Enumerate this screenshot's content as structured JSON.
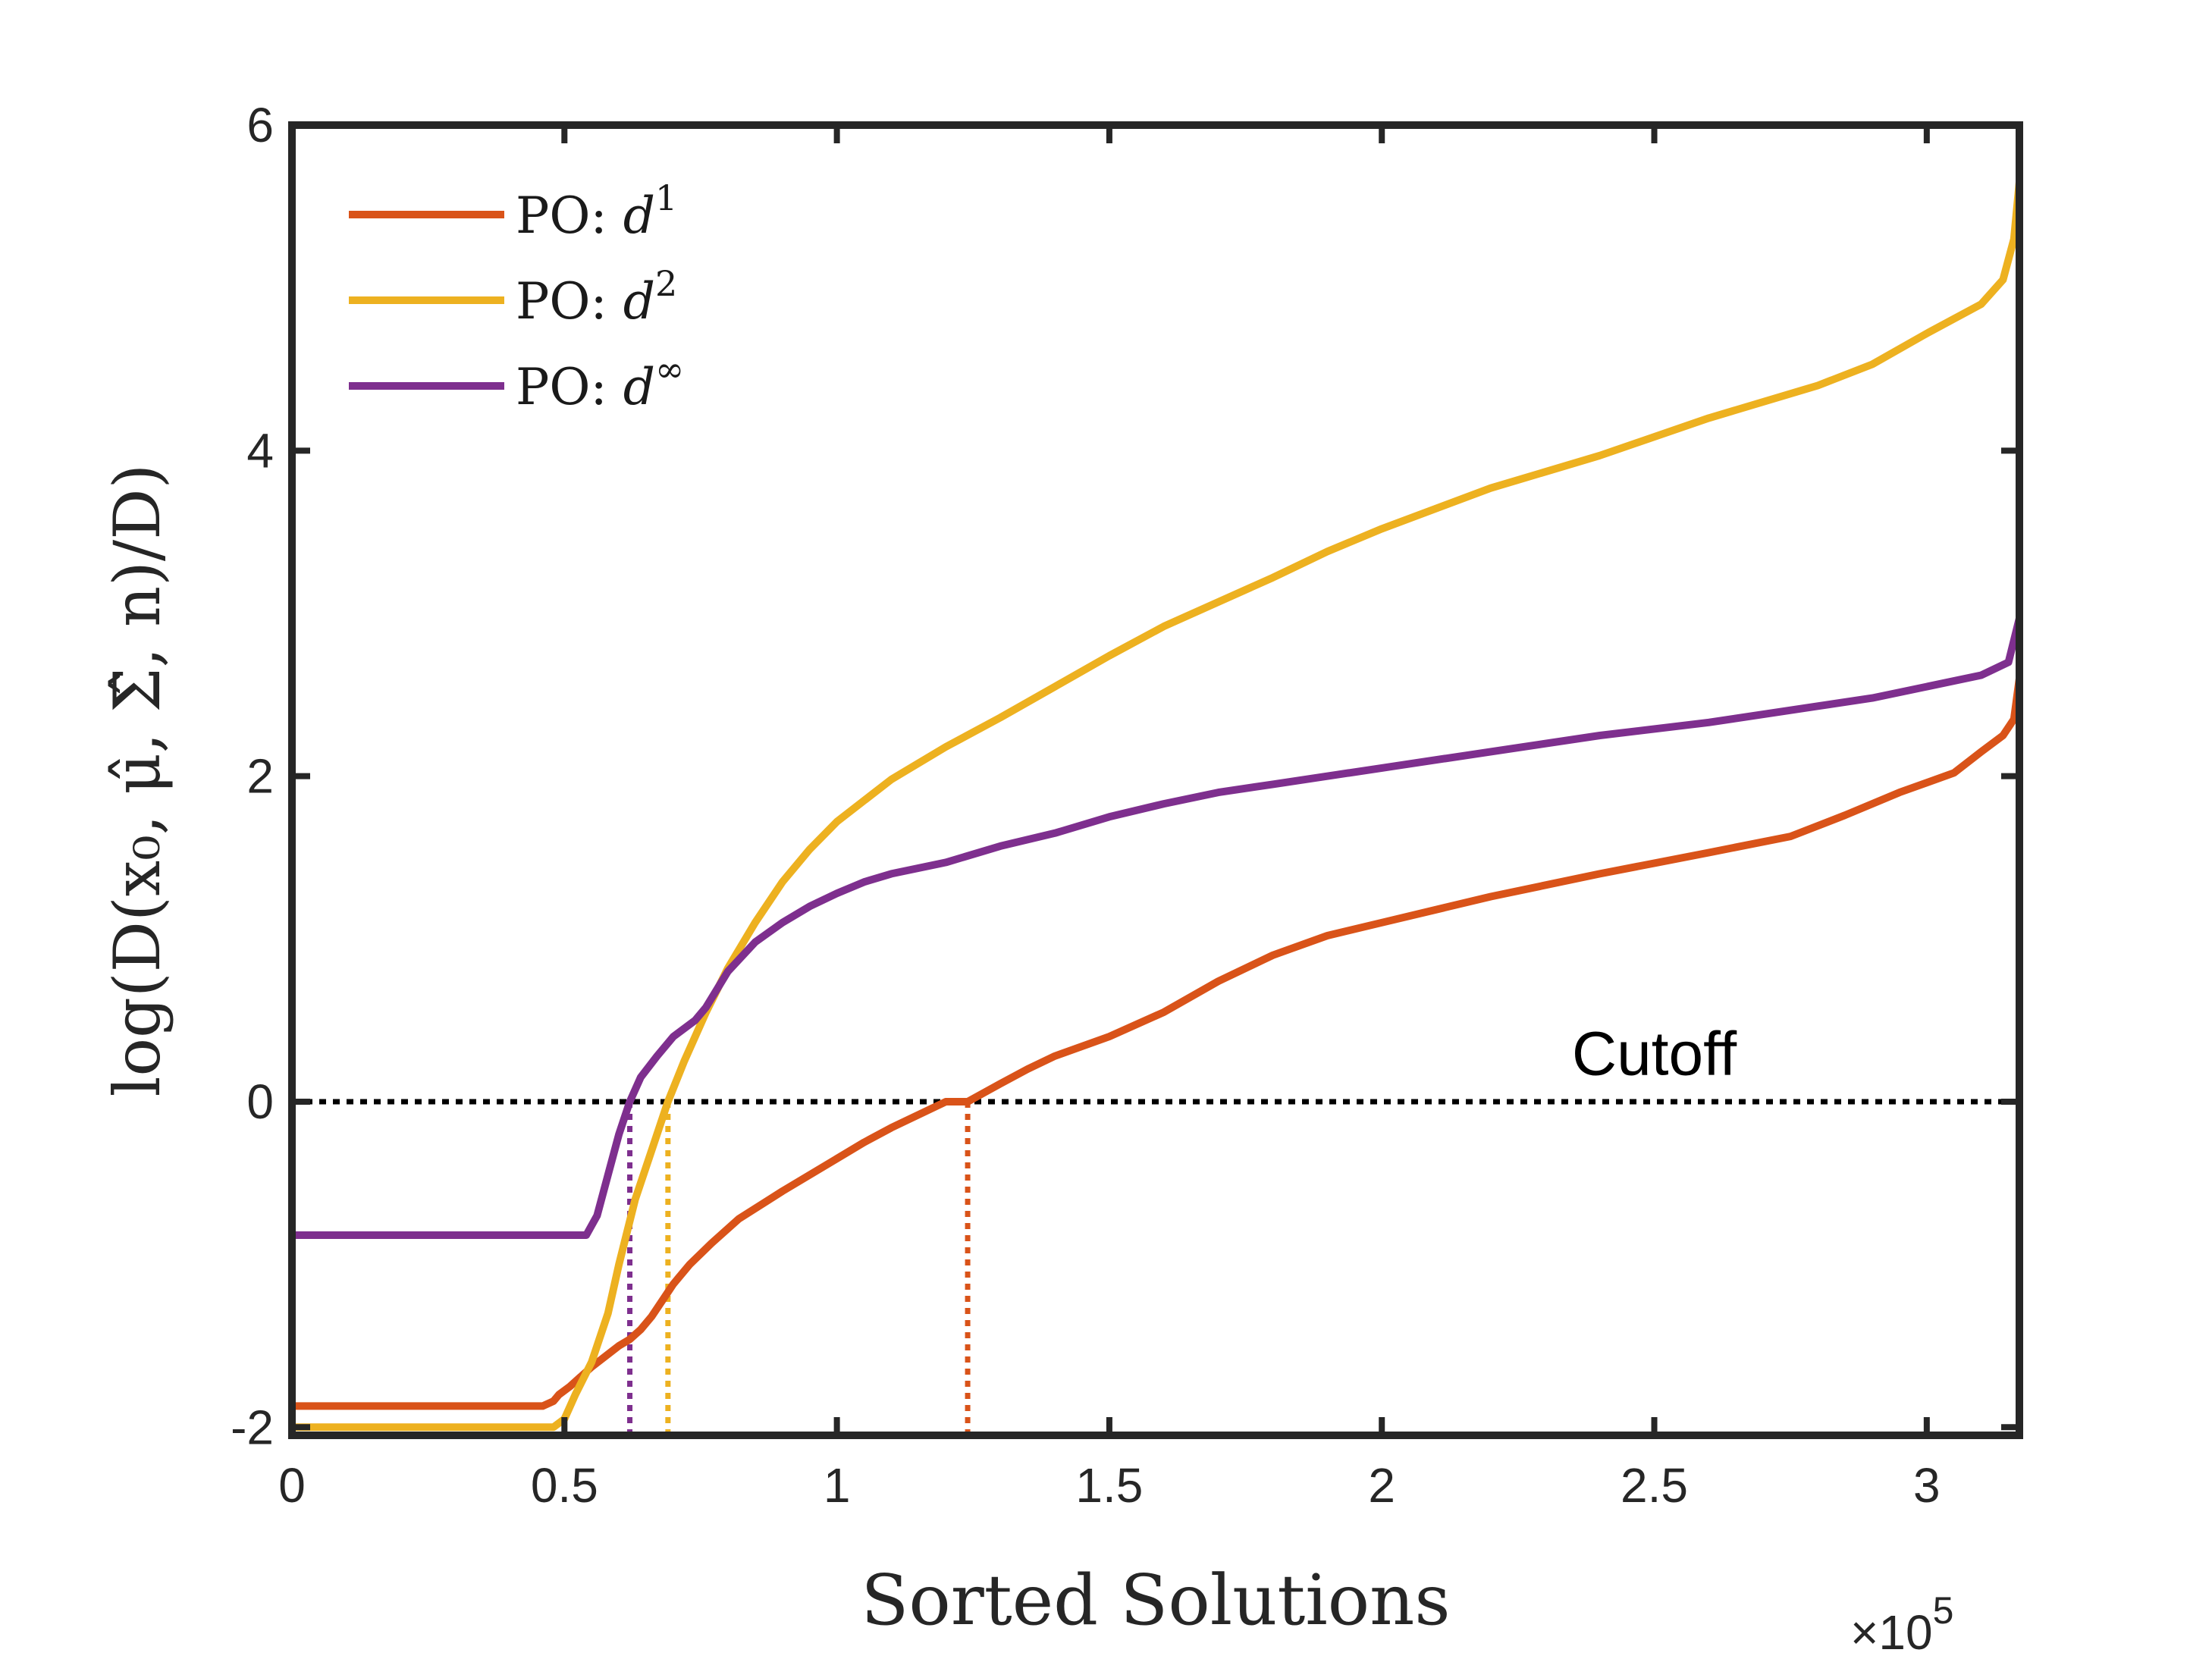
{
  "chart_data": {
    "type": "line",
    "xlabel": "Sorted Solutions",
    "ylabel": "log(D(x₀, μ̂, Σ̂, n)/D)",
    "x_multiplier": "×10",
    "x_multiplier_exp": "5",
    "xlim": [
      0,
      3.17
    ],
    "ylim": [
      -2.05,
      6
    ],
    "x_ticks": [
      {
        "value": 0,
        "label": "0"
      },
      {
        "value": 0.5,
        "label": "0.5"
      },
      {
        "value": 1,
        "label": "1"
      },
      {
        "value": 1.5,
        "label": "1.5"
      },
      {
        "value": 2,
        "label": "2"
      },
      {
        "value": 2.5,
        "label": "2.5"
      },
      {
        "value": 3,
        "label": "3"
      }
    ],
    "y_ticks": [
      {
        "value": -2,
        "label": "-2"
      },
      {
        "value": 0,
        "label": "0"
      },
      {
        "value": 2,
        "label": "2"
      },
      {
        "value": 4,
        "label": "4"
      },
      {
        "value": 6,
        "label": "6"
      }
    ],
    "grid": false,
    "legend_position": "top-left",
    "series": [
      {
        "name_prefix": "PO:",
        "name_base": "d",
        "name_sup": "1",
        "color": "#D95319",
        "cutoff_x": 1.24,
        "points": [
          [
            0,
            -1.87
          ],
          [
            0.46,
            -1.87
          ],
          [
            0.48,
            -1.84
          ],
          [
            0.49,
            -1.8
          ],
          [
            0.51,
            -1.75
          ],
          [
            0.55,
            -1.63
          ],
          [
            0.6,
            -1.5
          ],
          [
            0.62,
            -1.46
          ],
          [
            0.64,
            -1.4
          ],
          [
            0.66,
            -1.32
          ],
          [
            0.68,
            -1.22
          ],
          [
            0.7,
            -1.12
          ],
          [
            0.73,
            -1.0
          ],
          [
            0.77,
            -0.87
          ],
          [
            0.82,
            -0.72
          ],
          [
            0.9,
            -0.55
          ],
          [
            1.0,
            -0.35
          ],
          [
            1.05,
            -0.25
          ],
          [
            1.1,
            -0.16
          ],
          [
            1.2,
            0.0
          ],
          [
            1.24,
            0.0
          ],
          [
            1.3,
            0.11
          ],
          [
            1.35,
            0.2
          ],
          [
            1.4,
            0.28
          ],
          [
            1.5,
            0.4
          ],
          [
            1.6,
            0.55
          ],
          [
            1.7,
            0.74
          ],
          [
            1.8,
            0.9
          ],
          [
            1.9,
            1.02
          ],
          [
            2.0,
            1.1
          ],
          [
            2.2,
            1.26
          ],
          [
            2.4,
            1.4
          ],
          [
            2.6,
            1.53
          ],
          [
            2.75,
            1.63
          ],
          [
            2.85,
            1.76
          ],
          [
            2.95,
            1.9
          ],
          [
            3.05,
            2.02
          ],
          [
            3.1,
            2.15
          ],
          [
            3.14,
            2.25
          ],
          [
            3.16,
            2.35
          ],
          [
            3.17,
            2.6
          ]
        ]
      },
      {
        "name_prefix": "PO:",
        "name_base": "d",
        "name_sup": "2",
        "color": "#EDB120",
        "cutoff_x": 0.69,
        "points": [
          [
            0,
            -2.0
          ],
          [
            0.48,
            -2.0
          ],
          [
            0.5,
            -1.95
          ],
          [
            0.52,
            -1.8
          ],
          [
            0.55,
            -1.6
          ],
          [
            0.58,
            -1.3
          ],
          [
            0.6,
            -1.0
          ],
          [
            0.63,
            -0.6
          ],
          [
            0.66,
            -0.3
          ],
          [
            0.69,
            0.0
          ],
          [
            0.72,
            0.25
          ],
          [
            0.76,
            0.55
          ],
          [
            0.8,
            0.82
          ],
          [
            0.85,
            1.1
          ],
          [
            0.9,
            1.35
          ],
          [
            0.95,
            1.55
          ],
          [
            1.0,
            1.72
          ],
          [
            1.1,
            1.98
          ],
          [
            1.2,
            2.18
          ],
          [
            1.3,
            2.36
          ],
          [
            1.4,
            2.55
          ],
          [
            1.5,
            2.74
          ],
          [
            1.6,
            2.92
          ],
          [
            1.7,
            3.07
          ],
          [
            1.8,
            3.22
          ],
          [
            1.9,
            3.38
          ],
          [
            2.0,
            3.52
          ],
          [
            2.2,
            3.77
          ],
          [
            2.4,
            3.97
          ],
          [
            2.6,
            4.2
          ],
          [
            2.8,
            4.4
          ],
          [
            2.9,
            4.53
          ],
          [
            3.0,
            4.72
          ],
          [
            3.1,
            4.9
          ],
          [
            3.14,
            5.05
          ],
          [
            3.16,
            5.3
          ],
          [
            3.17,
            5.65
          ]
        ]
      },
      {
        "name_prefix": "PO:",
        "name_base": "d",
        "name_sup": "∞",
        "color": "#7E2F8E",
        "cutoff_x": 0.62,
        "points": [
          [
            0,
            -0.82
          ],
          [
            0.54,
            -0.82
          ],
          [
            0.56,
            -0.7
          ],
          [
            0.58,
            -0.45
          ],
          [
            0.6,
            -0.2
          ],
          [
            0.62,
            0.0
          ],
          [
            0.64,
            0.15
          ],
          [
            0.67,
            0.28
          ],
          [
            0.7,
            0.4
          ],
          [
            0.74,
            0.5
          ],
          [
            0.76,
            0.58
          ],
          [
            0.8,
            0.8
          ],
          [
            0.85,
            0.98
          ],
          [
            0.9,
            1.1
          ],
          [
            0.95,
            1.2
          ],
          [
            1.0,
            1.28
          ],
          [
            1.05,
            1.35
          ],
          [
            1.1,
            1.4
          ],
          [
            1.2,
            1.47
          ],
          [
            1.3,
            1.57
          ],
          [
            1.4,
            1.65
          ],
          [
            1.5,
            1.75
          ],
          [
            1.6,
            1.83
          ],
          [
            1.7,
            1.9
          ],
          [
            1.8,
            1.95
          ],
          [
            2.0,
            2.05
          ],
          [
            2.2,
            2.15
          ],
          [
            2.4,
            2.25
          ],
          [
            2.6,
            2.33
          ],
          [
            2.8,
            2.43
          ],
          [
            2.9,
            2.48
          ],
          [
            3.0,
            2.55
          ],
          [
            3.1,
            2.62
          ],
          [
            3.15,
            2.7
          ],
          [
            3.17,
            2.97
          ]
        ]
      }
    ],
    "reference_line": {
      "y": 0,
      "color": "#000000",
      "label": "Cutoff",
      "label_x": 2.5,
      "label_y": 0.1
    }
  }
}
